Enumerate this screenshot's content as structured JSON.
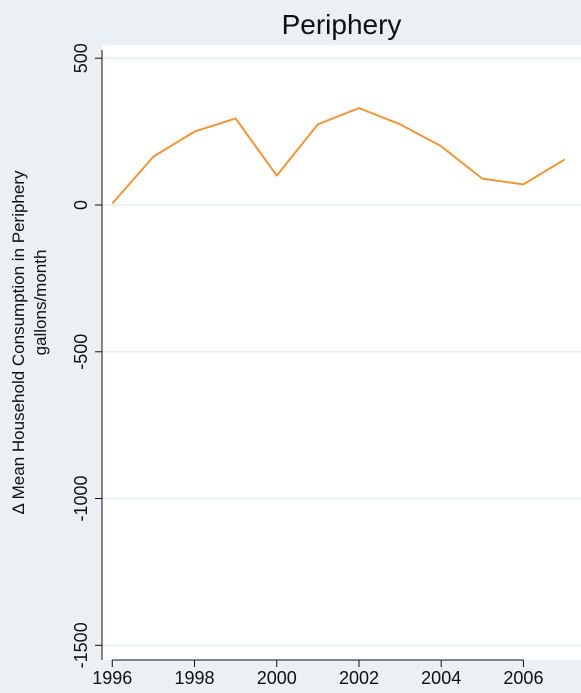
{
  "chart_data": {
    "type": "line",
    "title": "Periphery",
    "xlabel": "",
    "ylabel": "Δ Mean Household Consumption in Periphery",
    "ylabel_line2": "gallons/month",
    "x": [
      1996,
      1997,
      1998,
      1999,
      2000,
      2001,
      2002,
      2003,
      2004,
      2005,
      2006,
      2007
    ],
    "series": [
      {
        "values": [
          5,
          165,
          250,
          295,
          100,
          275,
          330,
          275,
          200,
          90,
          70,
          155
        ],
        "color": "#f0963a"
      }
    ],
    "xticks": [
      1996,
      1998,
      2000,
      2002,
      2004,
      2006
    ],
    "yticks": [
      500,
      0,
      -500,
      -1000,
      -1500
    ],
    "xlim": [
      1995.75,
      2007.4
    ],
    "ylim": [
      -1550,
      545
    ],
    "grid": true,
    "colors": {
      "background": "#eaf0f4",
      "plot_background": "#ffffff",
      "gridline": "#e8edf0",
      "axis": "#111111"
    }
  }
}
